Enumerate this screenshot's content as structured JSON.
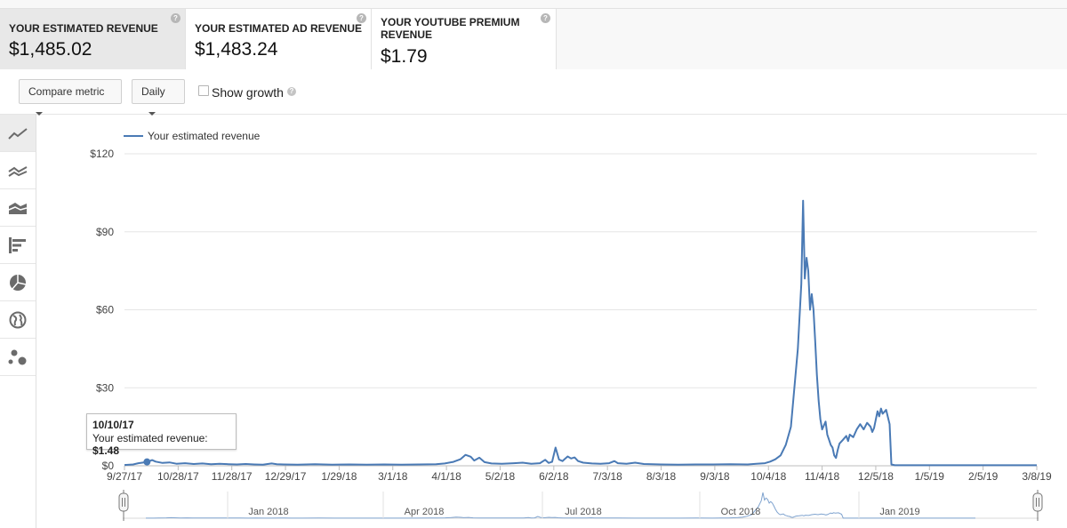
{
  "cards": [
    {
      "label": "YOUR ESTIMATED REVENUE",
      "value": "$1,485.02",
      "active": true
    },
    {
      "label": "YOUR ESTIMATED AD REVENUE",
      "value": "$1,483.24",
      "active": false
    },
    {
      "label_line1": "YOUR YOUTUBE PREMIUM",
      "label_line2": "REVENUE",
      "value": "$1.79",
      "active": false
    }
  ],
  "help_glyph": "?",
  "controls": {
    "compare_metric": "Compare metric",
    "granularity": "Daily",
    "show_growth": "Show growth",
    "show_growth_checked": false
  },
  "sidebar_icons": [
    "line-chart-icon",
    "multi-line-chart-icon",
    "area-chart-icon",
    "bar-chart-icon",
    "pie-chart-icon",
    "globe-map-icon",
    "bubble-chart-icon"
  ],
  "tooltip": {
    "date": "10/10/17",
    "label": "Your estimated revenue: ",
    "value": "$1.48"
  },
  "chart_data": {
    "type": "line",
    "series": [
      {
        "name": "Your estimated revenue",
        "color": "#4a7ab5"
      }
    ],
    "y_ticks": [
      "$120",
      "$90",
      "$60",
      "$30",
      "$0"
    ],
    "ylim": [
      0,
      120
    ],
    "x_ticks": [
      "9/27/17",
      "10/28/17",
      "11/28/17",
      "12/29/17",
      "1/29/18",
      "3/1/18",
      "4/1/18",
      "5/2/18",
      "6/2/18",
      "7/3/18",
      "8/3/18",
      "9/3/18",
      "10/4/18",
      "11/4/18",
      "12/5/18",
      "1/5/19",
      "2/5/19",
      "3/8/19"
    ],
    "x_range_days": [
      0,
      527
    ],
    "points": [
      [
        0,
        0.3
      ],
      [
        5,
        0.5
      ],
      [
        8,
        1.0
      ],
      [
        13,
        1.48
      ],
      [
        16,
        2.2
      ],
      [
        18,
        1.6
      ],
      [
        22,
        1.1
      ],
      [
        26,
        1.3
      ],
      [
        30,
        0.8
      ],
      [
        35,
        1.0
      ],
      [
        40,
        0.7
      ],
      [
        45,
        0.9
      ],
      [
        50,
        0.6
      ],
      [
        55,
        0.8
      ],
      [
        60,
        0.6
      ],
      [
        65,
        0.5
      ],
      [
        70,
        0.7
      ],
      [
        75,
        0.5
      ],
      [
        80,
        0.4
      ],
      [
        85,
        0.9
      ],
      [
        88,
        0.6
      ],
      [
        92,
        0.5
      ],
      [
        100,
        0.4
      ],
      [
        110,
        0.6
      ],
      [
        120,
        0.4
      ],
      [
        130,
        0.5
      ],
      [
        140,
        0.4
      ],
      [
        150,
        0.5
      ],
      [
        160,
        0.4
      ],
      [
        170,
        0.5
      ],
      [
        180,
        0.6
      ],
      [
        185,
        0.9
      ],
      [
        190,
        1.5
      ],
      [
        194,
        2.5
      ],
      [
        197,
        4.2
      ],
      [
        200,
        3.5
      ],
      [
        202,
        2.0
      ],
      [
        205,
        3.1
      ],
      [
        208,
        1.4
      ],
      [
        212,
        0.9
      ],
      [
        218,
        0.8
      ],
      [
        225,
        1.0
      ],
      [
        230,
        1.2
      ],
      [
        235,
        0.8
      ],
      [
        240,
        1.0
      ],
      [
        243,
        2.3
      ],
      [
        245,
        1.1
      ],
      [
        247,
        1.5
      ],
      [
        249,
        7.0
      ],
      [
        251,
        2.4
      ],
      [
        253,
        1.8
      ],
      [
        256,
        3.6
      ],
      [
        258,
        2.8
      ],
      [
        260,
        3.2
      ],
      [
        262,
        1.8
      ],
      [
        265,
        1.2
      ],
      [
        270,
        0.9
      ],
      [
        275,
        0.8
      ],
      [
        280,
        1.0
      ],
      [
        283,
        1.8
      ],
      [
        285,
        1.0
      ],
      [
        290,
        0.8
      ],
      [
        295,
        1.2
      ],
      [
        300,
        0.7
      ],
      [
        310,
        0.5
      ],
      [
        320,
        0.4
      ],
      [
        330,
        0.5
      ],
      [
        340,
        0.5
      ],
      [
        350,
        0.6
      ],
      [
        360,
        0.5
      ],
      [
        365,
        0.8
      ],
      [
        370,
        1.0
      ],
      [
        373,
        1.6
      ],
      [
        376,
        2.5
      ],
      [
        379,
        4.0
      ],
      [
        382,
        8.0
      ],
      [
        385,
        15.0
      ],
      [
        387,
        30.0
      ],
      [
        389,
        45.0
      ],
      [
        391,
        70.0
      ],
      [
        392,
        102.0
      ],
      [
        393,
        72.0
      ],
      [
        394,
        80.0
      ],
      [
        395,
        75.0
      ],
      [
        396,
        60.0
      ],
      [
        397,
        66.0
      ],
      [
        398,
        60.0
      ],
      [
        399,
        48.0
      ],
      [
        400,
        35.0
      ],
      [
        401,
        25.0
      ],
      [
        402,
        18.0
      ],
      [
        403,
        14.0
      ],
      [
        405,
        17.0
      ],
      [
        406,
        12.0
      ],
      [
        407,
        10.0
      ],
      [
        408,
        8.0
      ],
      [
        409,
        7.0
      ],
      [
        410,
        4.0
      ],
      [
        411,
        3.0
      ],
      [
        412,
        6.0
      ],
      [
        413,
        8.5
      ],
      [
        415,
        10.0
      ],
      [
        417,
        11.5
      ],
      [
        418,
        9.5
      ],
      [
        419,
        12.0
      ],
      [
        421,
        11.0
      ],
      [
        423,
        14.0
      ],
      [
        425,
        16.0
      ],
      [
        427,
        14.0
      ],
      [
        429,
        16.5
      ],
      [
        431,
        15.0
      ],
      [
        432,
        13.0
      ],
      [
        433,
        14.5
      ],
      [
        435,
        21.0
      ],
      [
        436,
        19.0
      ],
      [
        437,
        22.0
      ],
      [
        438,
        20.0
      ],
      [
        440,
        21.5
      ],
      [
        442,
        16.0
      ],
      [
        443,
        0.5
      ],
      [
        445,
        0.2
      ],
      [
        460,
        0.2
      ],
      [
        480,
        0.2
      ],
      [
        500,
        0.2
      ],
      [
        527,
        0.2
      ]
    ],
    "navigator_labels": [
      "Jan 2018",
      "Apr 2018",
      "Jul 2018",
      "Oct 2018",
      "Jan 2019"
    ]
  }
}
